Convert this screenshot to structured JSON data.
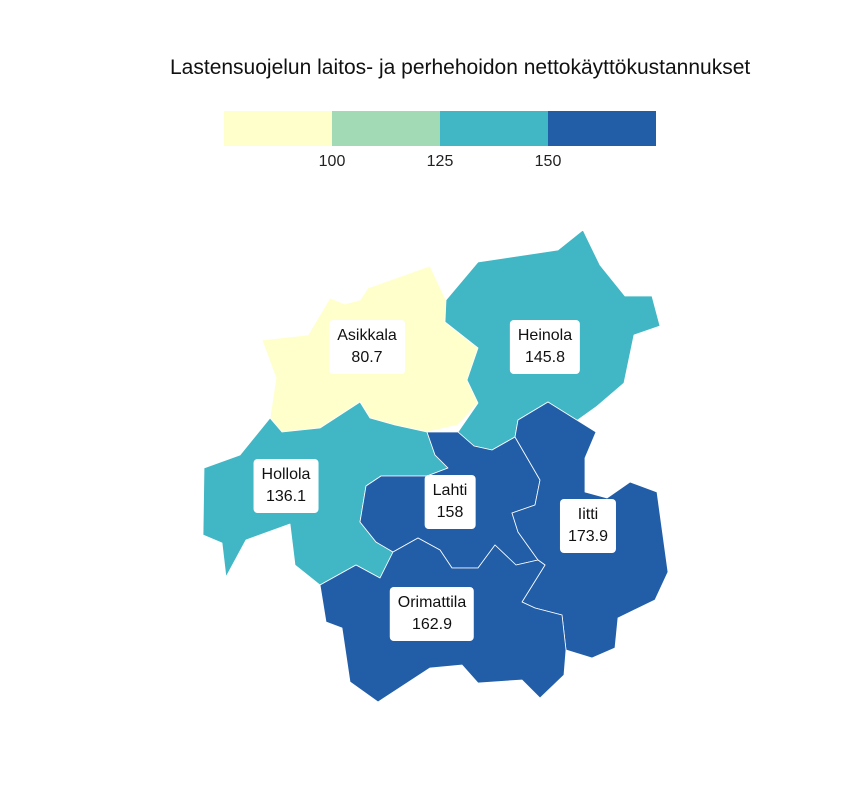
{
  "title": "Lastensuojelun laitos- ja perhehoidon nettokäyttökustannukset",
  "legend": {
    "colors": [
      "#ffffcc",
      "#a1dab4",
      "#41b6c4",
      "#225ea8"
    ],
    "ticks": [
      "100",
      "125",
      "150"
    ]
  },
  "municipalities": {
    "asikkala": {
      "name": "Asikkala",
      "value": "80.7",
      "color": "#ffffcc"
    },
    "heinola": {
      "name": "Heinola",
      "value": "145.8",
      "color": "#41b6c4"
    },
    "hollola": {
      "name": "Hollola",
      "value": "136.1",
      "color": "#41b6c4"
    },
    "lahti": {
      "name": "Lahti",
      "value": "158",
      "color": "#225ea8"
    },
    "iitti": {
      "name": "Iitti",
      "value": "173.9",
      "color": "#225ea8"
    },
    "orimattila": {
      "name": "Orimattila",
      "value": "162.9",
      "color": "#225ea8"
    }
  }
}
